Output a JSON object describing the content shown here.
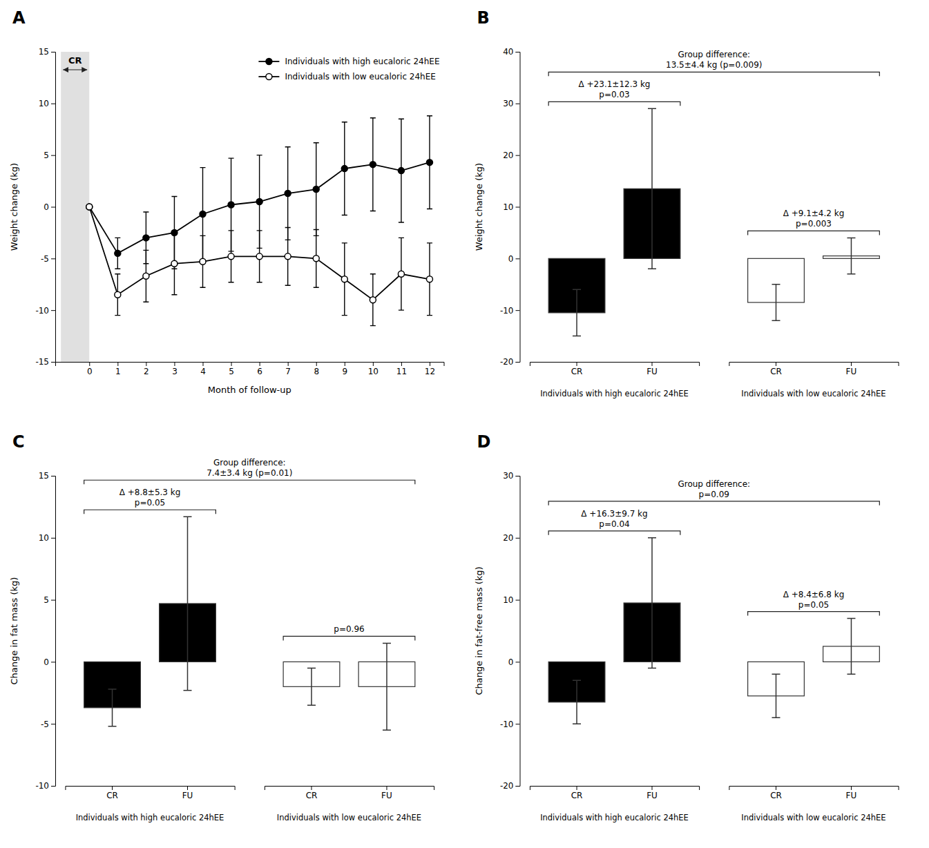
{
  "chart_data": [
    {
      "type": "line",
      "title": "A",
      "xlabel": "Month of follow-up",
      "ylabel": "Weight change (kg)",
      "xlim": [
        -1.2,
        12.5
      ],
      "xticks": [
        0,
        1,
        2,
        3,
        4,
        5,
        6,
        7,
        8,
        9,
        10,
        11,
        12
      ],
      "ylim": [
        -15,
        15
      ],
      "yticks": [
        -15,
        -10,
        -5,
        0,
        5,
        10,
        15
      ],
      "legend": "upper right",
      "series": [
        {
          "name": "Individuals with high eucaloric 24hEE",
          "color": "black",
          "marker": "filled-circle",
          "x": [
            0,
            1,
            2,
            3,
            4,
            5,
            6,
            7,
            8,
            9,
            10,
            11,
            12
          ],
          "values": [
            0,
            -4.5,
            -3.0,
            -2.5,
            -0.7,
            0.2,
            0.5,
            1.3,
            1.7,
            3.7,
            4.1,
            3.5,
            4.3
          ],
          "errors": [
            0,
            1.5,
            2.5,
            3.5,
            4.5,
            4.5,
            4.5,
            4.5,
            4.5,
            4.5,
            4.5,
            5.0,
            4.5
          ]
        },
        {
          "name": "Individuals with low eucaloric 24hEE",
          "color": "black",
          "marker": "open-circle",
          "x": [
            0,
            1,
            2,
            3,
            4,
            5,
            6,
            7,
            8,
            9,
            10,
            11,
            12
          ],
          "values": [
            0,
            -8.5,
            -6.7,
            -5.5,
            -5.3,
            -4.8,
            -4.8,
            -4.8,
            -5.0,
            -7.0,
            -9.0,
            -6.5,
            -7.0
          ],
          "errors": [
            0,
            2.0,
            2.5,
            3.0,
            2.5,
            2.5,
            2.5,
            2.8,
            2.8,
            3.5,
            2.5,
            3.5,
            3.5
          ]
        }
      ],
      "annotations": [
        {
          "text": "CR",
          "x_range": [
            -1.0,
            0
          ]
        }
      ]
    },
    {
      "type": "bar",
      "title": "B",
      "ylabel": "Weight change (kg)",
      "ylim": [
        -20,
        40
      ],
      "yticks": [
        -20,
        -10,
        0,
        10,
        20,
        30,
        40
      ],
      "categories": [
        "CR",
        "FU"
      ],
      "series": [
        {
          "name": "Individuals with high eucaloric 24hEE",
          "color": "black",
          "values": [
            -10.5,
            13.5
          ],
          "errors": [
            4.5,
            15.5
          ],
          "annotation": "Δ +23.1±12.3 kg\np=0.03"
        },
        {
          "name": "Individuals with low eucaloric 24hEE",
          "color": "white",
          "values": [
            -8.5,
            0.5
          ],
          "errors": [
            3.5,
            3.5
          ],
          "annotation": "Δ +9.1±4.2 kg\np=0.003"
        }
      ],
      "annotation": "Group difference:\n13.5±4.4 kg (p=0.009)"
    },
    {
      "type": "bar",
      "title": "C",
      "ylabel": "Change in fat mass (kg)",
      "ylim": [
        -10,
        15
      ],
      "yticks": [
        -10,
        -5,
        0,
        5,
        10,
        15
      ],
      "categories": [
        "CR",
        "FU"
      ],
      "series": [
        {
          "name": "Individuals with high eucaloric 24hEE",
          "color": "black",
          "values": [
            -3.7,
            4.7
          ],
          "errors": [
            1.5,
            7.0
          ],
          "annotation": "Δ +8.8±5.3 kg\np=0.05"
        },
        {
          "name": "Individuals with low eucaloric 24hEE",
          "color": "white",
          "values": [
            -2.0,
            -2.0
          ],
          "errors": [
            1.5,
            3.5
          ],
          "annotation": "p=0.96"
        }
      ],
      "annotation": "Group difference:\n7.4±3.4 kg (p=0.01)"
    },
    {
      "type": "bar",
      "title": "D",
      "ylabel": "Change in fat-free mass (kg)",
      "ylim": [
        -20,
        30
      ],
      "yticks": [
        -20,
        -10,
        0,
        10,
        20,
        30
      ],
      "categories": [
        "CR",
        "FU"
      ],
      "series": [
        {
          "name": "Individuals with high eucaloric 24hEE",
          "color": "black",
          "values": [
            -6.5,
            9.5
          ],
          "errors": [
            3.5,
            10.5
          ],
          "annotation": "Δ +16.3±9.7 kg\np=0.04"
        },
        {
          "name": "Individuals with low eucaloric 24hEE",
          "color": "white",
          "values": [
            -5.5,
            2.5
          ],
          "errors": [
            3.5,
            4.5
          ],
          "annotation": "Δ +8.4±6.8 kg\np=0.05"
        }
      ],
      "annotation": "Group difference:\np=0.09"
    }
  ]
}
